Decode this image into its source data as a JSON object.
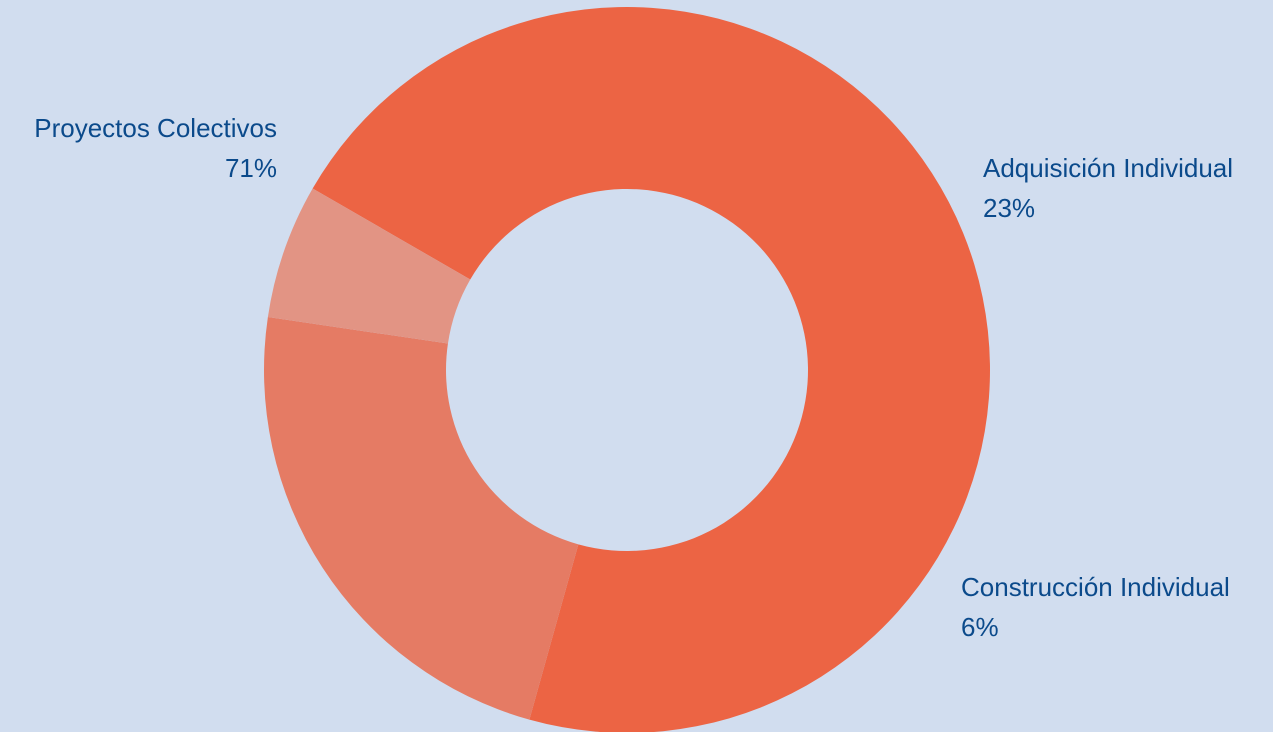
{
  "chart_data": {
    "type": "pie",
    "variant": "donut",
    "categories": [
      "Proyectos Colectivos",
      "Adquisición Individual",
      "Construcción Individual"
    ],
    "values": [
      71,
      23,
      6
    ],
    "labels": [
      "71%",
      "23%",
      "6%"
    ],
    "colors": [
      "#ec6444",
      "#e57b64",
      "#e29484"
    ],
    "legend": "none",
    "data_labels": "outside"
  },
  "colors": {
    "background": "#d1ddef",
    "label_text": "#0b4a8b"
  }
}
